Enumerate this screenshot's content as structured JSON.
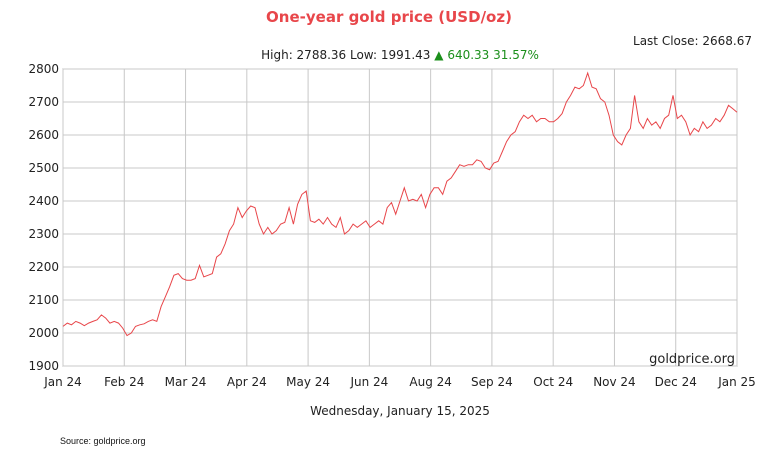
{
  "header": {
    "title": "One-year gold price (USD/oz)",
    "last_close": "Last Close: 2668.67",
    "high_low": "High: 2788.36 Low: 1991.43",
    "change": "▲ 640.33 31.57%"
  },
  "footer": {
    "date": "Wednesday, January 15, 2025",
    "source": "Source: goldprice.org"
  },
  "colors": {
    "line": "#e8464a",
    "grid": "#c8c8c8",
    "up": "#1b8f1b"
  },
  "chart_data": {
    "type": "line",
    "title": "One-year gold price (USD/oz)",
    "xlabel": "",
    "ylabel": "",
    "watermark": "goldprice.org",
    "ylim": [
      1900,
      2800
    ],
    "grid": true,
    "yticks": [
      1900,
      2000,
      2100,
      2200,
      2300,
      2400,
      2500,
      2600,
      2700,
      2800
    ],
    "xticks": [
      "Jan 24",
      "Feb 24",
      "Mar 24",
      "Apr 24",
      "May 24",
      "Jun 24",
      "Aug 24",
      "Sep 24",
      "Oct 24",
      "Nov 24",
      "Dec 24",
      "Jan 25"
    ],
    "series": [
      {
        "values": [
          2020,
          2030,
          2025,
          2035,
          2030,
          2022,
          2030,
          2035,
          2040,
          2055,
          2045,
          2030,
          2035,
          2030,
          2015,
          1992,
          2000,
          2020,
          2025,
          2028,
          2035,
          2040,
          2035,
          2080,
          2110,
          2140,
          2175,
          2180,
          2165,
          2160,
          2160,
          2165,
          2205,
          2170,
          2175,
          2180,
          2230,
          2240,
          2270,
          2310,
          2330,
          2380,
          2350,
          2370,
          2385,
          2380,
          2330,
          2300,
          2320,
          2300,
          2310,
          2330,
          2335,
          2380,
          2330,
          2390,
          2420,
          2430,
          2340,
          2335,
          2345,
          2330,
          2350,
          2330,
          2320,
          2350,
          2300,
          2310,
          2330,
          2320,
          2330,
          2340,
          2320,
          2330,
          2340,
          2330,
          2380,
          2395,
          2360,
          2400,
          2440,
          2400,
          2405,
          2400,
          2420,
          2380,
          2420,
          2440,
          2440,
          2420,
          2460,
          2470,
          2490,
          2510,
          2505,
          2510,
          2510,
          2525,
          2520,
          2500,
          2495,
          2515,
          2520,
          2550,
          2580,
          2600,
          2610,
          2640,
          2660,
          2650,
          2660,
          2640,
          2650,
          2650,
          2640,
          2640,
          2650,
          2665,
          2700,
          2720,
          2745,
          2740,
          2750,
          2788,
          2745,
          2740,
          2710,
          2700,
          2660,
          2600,
          2580,
          2570,
          2600,
          2620,
          2720,
          2640,
          2620,
          2650,
          2630,
          2640,
          2620,
          2650,
          2660,
          2720,
          2650,
          2660,
          2640,
          2600,
          2620,
          2610,
          2640,
          2620,
          2630,
          2650,
          2640,
          2660,
          2690,
          2680,
          2669
        ]
      }
    ]
  }
}
